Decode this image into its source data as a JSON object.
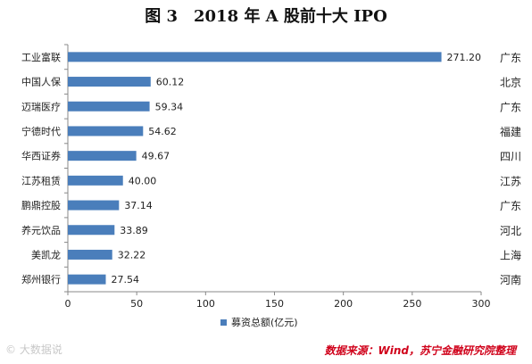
{
  "title": "图 3　2018 年 A 股前十大 IPO",
  "source": "数据来源：Wind，苏宁金融研究院整理",
  "watermark": "© 大数据说",
  "chart_data": {
    "type": "bar",
    "orientation": "horizontal",
    "categories": [
      "工业富联",
      "中国人保",
      "迈瑞医疗",
      "宁德时代",
      "华西证券",
      "江苏租赁",
      "鹏鼎控股",
      "养元饮品",
      "美凯龙",
      "郑州银行"
    ],
    "values": [
      271.2,
      60.12,
      59.34,
      54.62,
      49.67,
      40.0,
      37.14,
      33.89,
      32.22,
      27.54
    ],
    "value_labels": [
      "271.20",
      "60.12",
      "59.34",
      "54.62",
      "49.67",
      "40.00",
      "37.14",
      "33.89",
      "32.22",
      "27.54"
    ],
    "regions": [
      "广东",
      "北京",
      "广东",
      "福建",
      "四川",
      "江苏",
      "广东",
      "河北",
      "上海",
      "河南"
    ],
    "series": [
      {
        "name": "募资总额(亿元)",
        "values": [
          271.2,
          60.12,
          59.34,
          54.62,
          49.67,
          40.0,
          37.14,
          33.89,
          32.22,
          27.54
        ]
      }
    ],
    "xlim": [
      0,
      300
    ],
    "xticks": [
      "0",
      "50",
      "100",
      "150",
      "200",
      "250",
      "300"
    ],
    "bar_color": "#4a7ebb",
    "grid": false,
    "legend_position": "bottom"
  }
}
